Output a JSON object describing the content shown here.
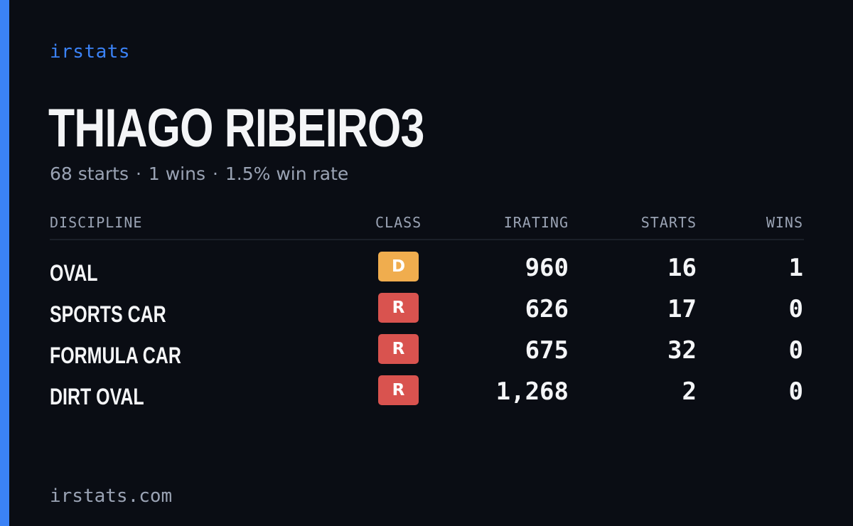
{
  "brand": "irstats",
  "accent_color": "#3b82f6",
  "player": {
    "name": "THIAGO RIBEIRO3",
    "summary": {
      "starts": "68 starts",
      "wins": "1 wins",
      "win_rate": "1.5% win rate",
      "separator": "·"
    }
  },
  "table": {
    "headers": {
      "discipline": "DISCIPLINE",
      "class": "CLASS",
      "irating": "IRATING",
      "starts": "STARTS",
      "wins": "WINS"
    },
    "rows": [
      {
        "discipline": "OVAL",
        "class": "D",
        "class_color": "#f0ad4e",
        "irating": "960",
        "starts": "16",
        "wins": "1"
      },
      {
        "discipline": "SPORTS CAR",
        "class": "R",
        "class_color": "#d9534f",
        "irating": "626",
        "starts": "17",
        "wins": "0"
      },
      {
        "discipline": "FORMULA CAR",
        "class": "R",
        "class_color": "#d9534f",
        "irating": "675",
        "starts": "32",
        "wins": "0"
      },
      {
        "discipline": "DIRT OVAL",
        "class": "R",
        "class_color": "#d9534f",
        "irating": "1,268",
        "starts": "2",
        "wins": "0"
      }
    ]
  },
  "footer": {
    "domain": "irstats.com"
  }
}
